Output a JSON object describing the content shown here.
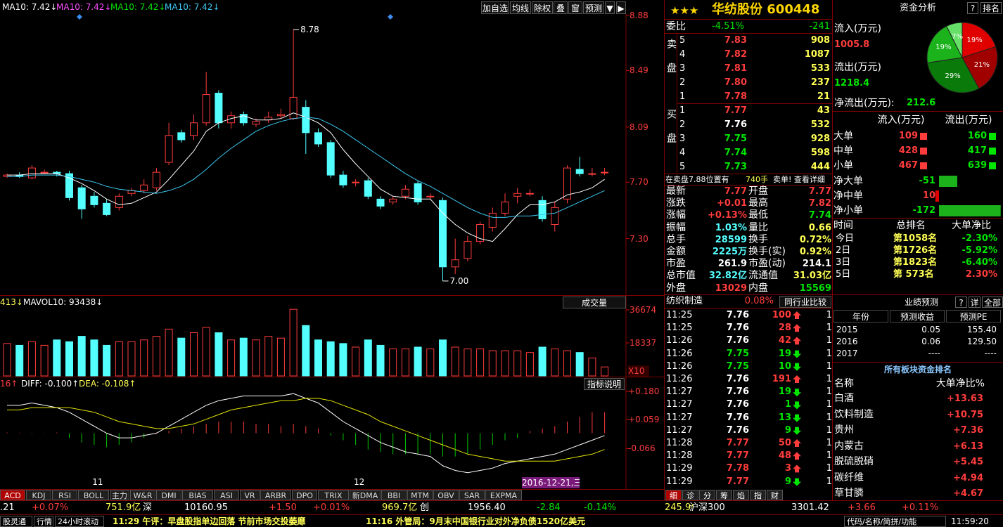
{
  "header": {
    "ma_legend": [
      "MA10: 7.42↓",
      "MA10: 7.42↓",
      "MA10: 7.42↓",
      "MA10: 7.42↓"
    ],
    "ma_legend_colors": [
      "#ffffff",
      "#ff50ff",
      "#00e600",
      "#3cc8f0"
    ],
    "toolbar": [
      "加自选",
      "均线",
      "除权",
      "叠",
      "窗",
      "预测"
    ]
  },
  "price_chart": {
    "ylim": [
      6.9,
      8.89
    ],
    "yticks": [
      8.88,
      8.49,
      8.09,
      {
        "value": 7.7,
        "label": "7.70"
      },
      {
        "value": 7.3,
        "label": "7.30"
      }
    ],
    "high_label": 8.78,
    "low_label": {
      "value": 7,
      "label": "7.00"
    },
    "up_color": "#ff3c3c",
    "down_color": "#54ffff",
    "candles": [
      {
        "o": 7.74,
        "h": 7.76,
        "l": 7.73,
        "c": 7.75
      },
      {
        "o": 7.75,
        "h": 7.77,
        "l": 7.73,
        "c": 7.74
      },
      {
        "o": 7.73,
        "h": 7.82,
        "l": 7.72,
        "c": 7.8
      },
      {
        "o": 7.77,
        "h": 7.79,
        "l": 7.76,
        "c": 7.77
      },
      {
        "o": 7.77,
        "h": 7.78,
        "l": 7.74,
        "c": 7.76
      },
      {
        "o": 7.76,
        "h": 7.78,
        "l": 7.57,
        "c": 7.59
      },
      {
        "o": 7.66,
        "h": 7.68,
        "l": 7.44,
        "c": 7.51
      },
      {
        "o": 7.6,
        "h": 7.63,
        "l": 7.52,
        "c": 7.54
      },
      {
        "o": 7.55,
        "h": 7.58,
        "l": 7.46,
        "c": 7.47
      },
      {
        "o": 7.52,
        "h": 7.62,
        "l": 7.5,
        "c": 7.6
      },
      {
        "o": 7.62,
        "h": 7.66,
        "l": 7.6,
        "c": 7.64
      },
      {
        "o": 7.64,
        "h": 7.72,
        "l": 7.62,
        "c": 7.68
      },
      {
        "o": 7.66,
        "h": 7.8,
        "l": 7.64,
        "c": 7.77
      },
      {
        "o": 7.84,
        "h": 8.12,
        "l": 7.82,
        "c": 8.03
      },
      {
        "o": 8.05,
        "h": 8.07,
        "l": 7.98,
        "c": 8.0
      },
      {
        "o": 8.03,
        "h": 8.18,
        "l": 8.0,
        "c": 8.12
      },
      {
        "o": 8.12,
        "h": 8.48,
        "l": 8.1,
        "c": 8.32
      },
      {
        "o": 8.33,
        "h": 8.35,
        "l": 8.08,
        "c": 8.12
      },
      {
        "o": 8.12,
        "h": 8.2,
        "l": 8.08,
        "c": 8.17
      },
      {
        "o": 8.18,
        "h": 8.2,
        "l": 8.1,
        "c": 8.12
      },
      {
        "o": 8.11,
        "h": 8.15,
        "l": 8.09,
        "c": 8.13
      },
      {
        "o": 8.14,
        "h": 8.2,
        "l": 8.12,
        "c": 8.16
      },
      {
        "o": 8.17,
        "h": 8.22,
        "l": 8.15,
        "c": 8.18
      },
      {
        "o": 8.15,
        "h": 8.78,
        "l": 8.14,
        "c": 8.3
      },
      {
        "o": 8.23,
        "h": 8.28,
        "l": 7.9,
        "c": 8.05
      },
      {
        "o": 8.05,
        "h": 8.08,
        "l": 7.95,
        "c": 7.97
      },
      {
        "o": 7.98,
        "h": 8.0,
        "l": 7.73,
        "c": 7.75
      },
      {
        "o": 7.75,
        "h": 7.78,
        "l": 7.66,
        "c": 7.68
      },
      {
        "o": 7.7,
        "h": 7.72,
        "l": 7.67,
        "c": 7.7
      },
      {
        "o": 7.71,
        "h": 7.73,
        "l": 7.58,
        "c": 7.6
      },
      {
        "o": 7.58,
        "h": 7.6,
        "l": 7.51,
        "c": 7.53
      },
      {
        "o": 7.56,
        "h": 7.6,
        "l": 7.54,
        "c": 7.58
      },
      {
        "o": 7.6,
        "h": 7.68,
        "l": 7.58,
        "c": 7.65
      },
      {
        "o": 7.69,
        "h": 7.71,
        "l": 7.54,
        "c": 7.56
      },
      {
        "o": 7.6,
        "h": 7.62,
        "l": 7.58,
        "c": 7.6
      },
      {
        "o": 7.57,
        "h": 7.59,
        "l": 7.0,
        "c": 7.1
      },
      {
        "o": 7.1,
        "h": 7.3,
        "l": 7.05,
        "c": 7.15
      },
      {
        "o": 7.16,
        "h": 7.32,
        "l": 7.14,
        "c": 7.28
      },
      {
        "o": 7.28,
        "h": 7.42,
        "l": 7.26,
        "c": 7.4
      },
      {
        "o": 7.38,
        "h": 7.52,
        "l": 7.35,
        "c": 7.48
      },
      {
        "o": 7.48,
        "h": 7.62,
        "l": 7.46,
        "c": 7.56
      },
      {
        "o": 7.6,
        "h": 7.66,
        "l": 7.55,
        "c": 7.62
      },
      {
        "o": 7.62,
        "h": 7.65,
        "l": 7.6,
        "c": 7.62
      },
      {
        "o": 7.57,
        "h": 7.6,
        "l": 7.42,
        "c": 7.44
      },
      {
        "o": 7.4,
        "h": 7.56,
        "l": 7.35,
        "c": 7.52
      },
      {
        "o": 7.58,
        "h": 7.82,
        "l": 7.55,
        "c": 7.8
      },
      {
        "o": 7.79,
        "h": 7.88,
        "l": 7.74,
        "c": 7.76
      },
      {
        "o": 7.76,
        "h": 7.8,
        "l": 7.74,
        "c": 7.76
      },
      {
        "o": 7.77,
        "h": 7.8,
        "l": 7.75,
        "c": 7.77
      }
    ],
    "ma5": [
      7.75,
      7.75,
      7.76,
      7.76,
      7.76,
      7.73,
      7.69,
      7.64,
      7.58,
      7.54,
      7.55,
      7.59,
      7.63,
      7.72,
      7.82,
      7.92,
      8.06,
      8.12,
      8.15,
      8.17,
      8.14,
      8.14,
      8.15,
      8.19,
      8.16,
      8.12,
      8.05,
      7.93,
      7.83,
      7.74,
      7.65,
      7.6,
      7.59,
      7.58,
      7.58,
      7.48,
      7.4,
      7.34,
      7.3,
      7.28,
      7.37,
      7.47,
      7.54,
      7.54,
      7.56,
      7.61,
      7.63,
      7.66,
      7.72
    ],
    "ma10": [
      7.74,
      7.74,
      7.75,
      7.75,
      7.75,
      7.74,
      7.72,
      7.7,
      7.67,
      7.65,
      7.64,
      7.63,
      7.62,
      7.64,
      7.67,
      7.72,
      7.79,
      7.87,
      7.94,
      8.0,
      8.06,
      8.1,
      8.13,
      8.15,
      8.16,
      8.15,
      8.11,
      8.06,
      8.0,
      7.94,
      7.88,
      7.82,
      7.76,
      7.71,
      7.67,
      7.62,
      7.57,
      7.52,
      7.48,
      7.45,
      7.45,
      7.46,
      7.46,
      7.47,
      7.48,
      7.52,
      7.56,
      7.6,
      7.64
    ],
    "ma5_color": "#ffffff",
    "ma10_color": "#3cc8f0",
    "x_labels": [
      "11",
      "12"
    ],
    "date_label": "2016-12-21,三"
  },
  "volume_chart": {
    "legend": [
      "413↓",
      "MAVOL10: 93438↓"
    ],
    "selector": "成交量",
    "ylim": [
      0,
      38235
    ],
    "yticks": [
      36674,
      18337
    ],
    "scale_label": "X10",
    "values": [
      18000,
      17000,
      19000,
      17000,
      20000,
      19000,
      22000,
      20000,
      17000,
      19000,
      19000,
      20000,
      22000,
      26000,
      21000,
      24000,
      27000,
      24000,
      20000,
      21000,
      20000,
      22000,
      21000,
      37000,
      28000,
      20000,
      19000,
      18000,
      16000,
      20000,
      17000,
      15000,
      15000,
      16000,
      15000,
      20000,
      16000,
      15000,
      15000,
      14000,
      14000,
      14000,
      13000,
      16000,
      15000,
      14000,
      13000,
      10000,
      5000
    ]
  },
  "macd_chart": {
    "legend": [
      "16↑",
      "DIFF: -0.100↑",
      "DEA: -0.108↑"
    ],
    "help": "指标说明",
    "ylim": [
      -0.237,
      0.216
    ],
    "yticks": [
      {
        "value": 0.18,
        "label": "+0.180"
      },
      {
        "value": 0.059,
        "label": "+0.059"
      },
      {
        "value": -0.066,
        "label": "-0.066"
      }
    ],
    "macd": [
      0.003,
      0.002,
      0.002,
      0.001,
      0.0,
      -0.02,
      -0.04,
      -0.05,
      -0.06,
      -0.05,
      -0.04,
      -0.02,
      0.0,
      0.01,
      0.02,
      0.03,
      0.04,
      0.05,
      0.05,
      0.05,
      0.04,
      0.04,
      0.03,
      0.04,
      0.03,
      0.02,
      -0.01,
      -0.03,
      -0.05,
      -0.07,
      -0.08,
      -0.09,
      -0.09,
      -0.09,
      -0.09,
      -0.1,
      -0.1,
      -0.09,
      -0.07,
      -0.05,
      -0.03,
      -0.02,
      0.01,
      0.02,
      0.03,
      0.05,
      0.07,
      0.09,
      0.09
    ],
    "diff": [
      0.12,
      0.12,
      0.13,
      0.12,
      0.11,
      0.09,
      0.06,
      0.03,
      0.0,
      -0.02,
      -0.02,
      -0.01,
      0.0,
      0.03,
      0.06,
      0.09,
      0.12,
      0.14,
      0.15,
      0.16,
      0.16,
      0.16,
      0.16,
      0.17,
      0.15,
      0.13,
      0.09,
      0.05,
      0.02,
      -0.01,
      -0.04,
      -0.06,
      -0.08,
      -0.09,
      -0.1,
      -0.14,
      -0.16,
      -0.17,
      -0.16,
      -0.15,
      -0.13,
      -0.12,
      -0.11,
      -0.1,
      -0.09,
      -0.07,
      -0.05,
      -0.03,
      -0.01
    ],
    "dea": [
      0.1,
      0.1,
      0.11,
      0.11,
      0.11,
      0.11,
      0.1,
      0.09,
      0.07,
      0.05,
      0.04,
      0.03,
      0.02,
      0.02,
      0.03,
      0.04,
      0.06,
      0.08,
      0.1,
      0.11,
      0.12,
      0.13,
      0.14,
      0.14,
      0.15,
      0.15,
      0.14,
      0.12,
      0.1,
      0.08,
      0.05,
      0.03,
      0.01,
      -0.01,
      -0.03,
      -0.05,
      -0.07,
      -0.09,
      -0.1,
      -0.11,
      -0.12,
      -0.12,
      -0.12,
      -0.12,
      -0.12,
      -0.11,
      -0.1,
      -0.09,
      -0.07
    ],
    "diff_color": "#ffffff",
    "dea_color": "#e6e600",
    "up_color": "#ff3c3c",
    "down_color": "#00c800"
  },
  "indicator_tabs": [
    "ACD",
    "KDJ",
    "RSI",
    "BOLL",
    "主力",
    "W&R",
    "DMI",
    "BIAS",
    "ASI",
    "VR",
    "ARBR",
    "DPO",
    "TRIX",
    "新DMA",
    "BBI",
    "MTM",
    "OBV",
    "SAR",
    "EXPMA"
  ],
  "status_bar": [
    ".21",
    "+0.07%",
    "751.9亿",
    "深",
    "10160.95",
    "+1.50",
    "+0.01%",
    "969.7亿",
    "创",
    "1956.40",
    "-2.84",
    "-0.14%",
    "245.9亿",
    "沪深300",
    "3301.42",
    "+3.66",
    "+0.11%"
  ],
  "status_colors": [
    "#ffffff",
    "#ff3c3c",
    "#ffff54",
    "#ffffff",
    "#ffffff",
    "#ff3c3c",
    "#ff3c3c",
    "#ffff54",
    "#ffffff",
    "#ffffff",
    "#00e600",
    "#00e600",
    "#ffff54",
    "#ffffff",
    "#ffffff",
    "#ff3c3c",
    "#ff3c3c"
  ],
  "ticker": [
    "股灵通",
    "行情",
    "24小时滚动",
    "11:29 午评：早盘股指单边回落 节前市场交投萎靡",
    "11:16 外管局：9月末中国银行业对外净负债1520亿美元",
    "代码/名称/简拼/功能",
    "11:59:20"
  ],
  "quote": {
    "stars": "★★★",
    "name": "华纺股份 600448",
    "ratio_label": "委比",
    "ratio": "-4.51%",
    "ratio_diff": "-241",
    "sell_label": "卖盘",
    "buy_label": "买盘",
    "sell": [
      {
        "level": "5",
        "price": "7.83",
        "volume": "908",
        "color": "#ff3c3c"
      },
      {
        "level": "4",
        "price": "7.82",
        "volume": "1087",
        "color": "#ff3c3c"
      },
      {
        "level": "3",
        "price": "7.81",
        "volume": "533",
        "color": "#ff3c3c"
      },
      {
        "level": "2",
        "price": "7.80",
        "volume": "237",
        "color": "#ff3c3c"
      },
      {
        "level": "1",
        "price": "7.78",
        "volume": "21",
        "color": "#ff3c3c"
      }
    ],
    "buy": [
      {
        "level": "1",
        "price": "7.77",
        "volume": "43",
        "color": "#ff3c3c"
      },
      {
        "level": "2",
        "price": "7.76",
        "volume": "532",
        "color": "#ffffff"
      },
      {
        "level": "3",
        "price": "7.75",
        "volume": "928",
        "color": "#00e600"
      },
      {
        "level": "4",
        "price": "7.74",
        "volume": "598",
        "color": "#00e600"
      },
      {
        "level": "5",
        "price": "7.73",
        "volume": "444",
        "color": "#00e600"
      }
    ],
    "notice": [
      "在卖盘7.88位置有",
      "740手",
      "卖单! 查看详细"
    ],
    "stats": [
      {
        "l1": "最新",
        "v1": "7.77",
        "c1": "#ff3c3c",
        "l2": "开盘",
        "v2": "7.77",
        "c2": "#ff3c3c"
      },
      {
        "l1": "涨跌",
        "v1": "+0.01",
        "c1": "#ff3c3c",
        "l2": "最高",
        "v2": "7.82",
        "c2": "#ff3c3c"
      },
      {
        "l1": "涨幅",
        "v1": "+0.13%",
        "c1": "#ff3c3c",
        "l2": "最低",
        "v2": "7.74",
        "c2": "#00e600"
      },
      {
        "l1": "振幅",
        "v1": "1.03%",
        "c1": "#54ffff",
        "l2": "量比",
        "v2": "0.66",
        "c2": "#ffff54"
      },
      {
        "l1": "总手",
        "v1": "28599",
        "c1": "#54ffff",
        "l2": "换手",
        "v2": "0.72%",
        "c2": "#ffff54"
      },
      {
        "l1": "金额",
        "v1": "2225万",
        "c1": "#54ffff",
        "l2": "换手(实)",
        "v2": "0.92%",
        "c2": "#ffff54"
      },
      {
        "l1": "市盈",
        "v1": "261.9",
        "c1": "#ffffff",
        "l2": "市盈(动)",
        "v2": "214.1",
        "c2": "#ffffff"
      },
      {
        "l1": "总市值",
        "v1": "32.82亿",
        "c1": "#54ffff",
        "l2": "流通值",
        "v2": "31.03亿",
        "c2": "#ffff54"
      },
      {
        "l1": "外盘",
        "v1": "13029",
        "c1": "#ff3c3c",
        "l2": "内盘",
        "v2": "15569",
        "c2": "#00e600"
      }
    ],
    "industry": "纺织制造",
    "industry_change": "0.08%",
    "compare": "同行业比较",
    "ticks": [
      {
        "time": "11:25",
        "price": "7.76",
        "vol": "100",
        "dir": "up",
        "last": "1",
        "color": "#ffffff"
      },
      {
        "time": "11:25",
        "price": "7.76",
        "vol": "28",
        "dir": "up",
        "last": "1",
        "color": "#ffffff"
      },
      {
        "time": "11:26",
        "price": "7.76",
        "vol": "42",
        "dir": "up",
        "last": "1",
        "color": "#ffffff"
      },
      {
        "time": "11:26",
        "price": "7.75",
        "vol": "19",
        "dir": "down",
        "last": "1",
        "color": "#00e600"
      },
      {
        "time": "11:26",
        "price": "7.75",
        "vol": "10",
        "dir": "down",
        "last": "1",
        "color": "#00e600"
      },
      {
        "time": "11:26",
        "price": "7.76",
        "vol": "191",
        "dir": "up",
        "last": "1",
        "color": "#ffffff"
      },
      {
        "time": "11:27",
        "price": "7.76",
        "vol": "19",
        "dir": "down",
        "last": "1",
        "color": "#ffffff"
      },
      {
        "time": "11:27",
        "price": "7.76",
        "vol": "1",
        "dir": "down",
        "last": "1",
        "color": "#ffffff"
      },
      {
        "time": "11:27",
        "price": "7.76",
        "vol": "13",
        "dir": "down",
        "last": "1",
        "color": "#ffffff"
      },
      {
        "time": "11:27",
        "price": "7.76",
        "vol": "9",
        "dir": "down",
        "last": "1",
        "color": "#ffffff"
      },
      {
        "time": "11:28",
        "price": "7.77",
        "vol": "50",
        "dir": "up",
        "last": "1",
        "color": "#ff3c3c"
      },
      {
        "time": "11:28",
        "price": "7.77",
        "vol": "48",
        "dir": "up",
        "last": "1",
        "color": "#ff3c3c"
      },
      {
        "time": "11:29",
        "price": "7.78",
        "vol": "3",
        "dir": "up",
        "last": "1",
        "color": "#ff3c3c"
      },
      {
        "time": "11:29",
        "price": "7.77",
        "vol": "9",
        "dir": "down",
        "last": "1",
        "color": "#ff3c3c"
      }
    ],
    "tabs": [
      "细",
      "诊",
      "分",
      "筹",
      "焰",
      "指",
      "财"
    ]
  },
  "fund": {
    "title": "资金分析",
    "help": "?",
    "rank": "排名",
    "inflow_label": "流入(万元)",
    "inflow": 1005.8,
    "outflow_label": "流出(万元)",
    "outflow": 1218.4,
    "net_label": "净流出(万元):",
    "net": 212.6,
    "pie": {
      "values": [
        19,
        21,
        29,
        19,
        7
      ],
      "value_labels": [
        "19%",
        "21%",
        "29%",
        "19%",
        "7%"
      ],
      "colors": [
        "#e00000",
        "#a00000",
        "#0a7a0a",
        "#1cb21c",
        "#66e066"
      ]
    },
    "flow_header": [
      "流入(万元)",
      "流出(万元)"
    ],
    "flow_rows": [
      [
        "大单",
        109,
        160
      ],
      [
        "中单",
        428,
        417
      ],
      [
        "小单",
        467,
        639
      ]
    ],
    "net_rows": [
      [
        "净大单",
        -51
      ],
      [
        "净中单",
        10
      ],
      [
        "净小单",
        -172
      ]
    ],
    "rank_header": [
      "时间",
      "总排名",
      "大单净比"
    ],
    "rank_rows": [
      [
        "今日",
        "第1058名",
        "-2.30%"
      ],
      [
        "2日",
        "第1726名",
        "-5.92%"
      ],
      [
        "3日",
        "第1823名",
        "-6.40%"
      ],
      [
        "5日",
        "第  573名",
        "2.30%"
      ]
    ],
    "forecast_title": "业绩预测",
    "forecast_buttons": [
      "?",
      "详",
      "全部"
    ],
    "forecast_header": [
      "年份",
      "预测收益",
      "预测PE"
    ],
    "forecast_rows": [
      [
        "2015",
        "0.05",
        "155.40"
      ],
      [
        "2016",
        "0.06",
        "129.50"
      ],
      [
        "2017",
        "----",
        "----"
      ]
    ],
    "sector_title": "所有板块资金排名",
    "sector_header": [
      "名称",
      "大单净比%"
    ],
    "sector_rows": [
      [
        "白酒",
        "+13.63"
      ],
      [
        "饮料制造",
        "+10.75"
      ],
      [
        "贵州",
        "+7.36"
      ],
      [
        "内蒙古",
        "+6.13"
      ],
      [
        "脱硫脱硝",
        "+5.45"
      ],
      [
        "碳纤维",
        "+4.94"
      ],
      [
        "草甘膦",
        "+4.67"
      ]
    ]
  }
}
